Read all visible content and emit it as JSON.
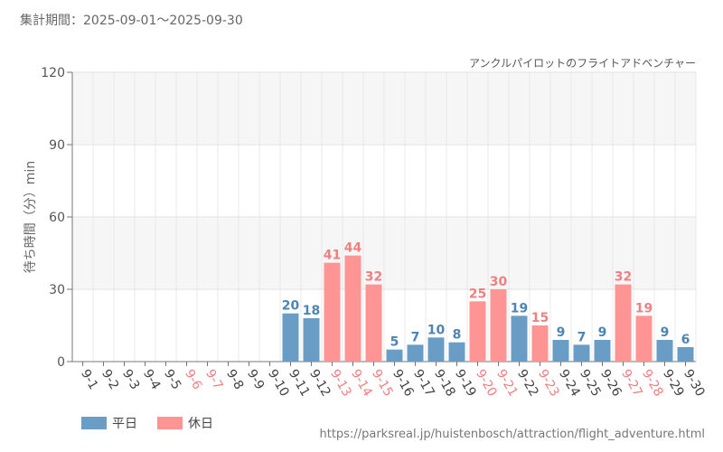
{
  "period_text": "集計期間：2025-09-01～2025-09-30",
  "colors": {
    "weekday": "#6a9dc6",
    "holiday": "#ff9494",
    "weekday_label": "#4e84b4",
    "holiday_label": "#f08080"
  },
  "legend": {
    "weekday": "平日",
    "holiday": "休日"
  },
  "source_url": "https://parksreal.jp/huistenbosch/attraction/flight_adventure.html",
  "chart_data": {
    "type": "bar",
    "title": "アンクルパイロットのフライトアドベンチャー",
    "ylabel": "待ち時間（分）min",
    "xlabel": "",
    "ylim": [
      0,
      120
    ],
    "yticks": [
      0,
      30,
      60,
      90,
      120
    ],
    "categories": [
      "9-1",
      "9-2",
      "9-3",
      "9-4",
      "9-5",
      "9-6",
      "9-7",
      "9-8",
      "9-9",
      "9-10",
      "9-11",
      "9-12",
      "9-13",
      "9-14",
      "9-15",
      "9-16",
      "9-17",
      "9-18",
      "9-19",
      "9-20",
      "9-21",
      "9-22",
      "9-23",
      "9-24",
      "9-25",
      "9-26",
      "9-27",
      "9-28",
      "9-29",
      "9-30"
    ],
    "values": [
      null,
      null,
      null,
      null,
      null,
      null,
      null,
      null,
      null,
      null,
      20,
      18,
      41,
      44,
      32,
      5,
      7,
      10,
      8,
      25,
      30,
      19,
      15,
      9,
      7,
      9,
      32,
      19,
      9,
      6
    ],
    "day_type": [
      "weekday",
      "weekday",
      "weekday",
      "weekday",
      "weekday",
      "holiday",
      "holiday",
      "weekday",
      "weekday",
      "weekday",
      "weekday",
      "weekday",
      "holiday",
      "holiday",
      "holiday",
      "weekday",
      "weekday",
      "weekday",
      "weekday",
      "holiday",
      "holiday",
      "weekday",
      "holiday",
      "weekday",
      "weekday",
      "weekday",
      "holiday",
      "holiday",
      "weekday",
      "weekday"
    ],
    "grid": true
  }
}
